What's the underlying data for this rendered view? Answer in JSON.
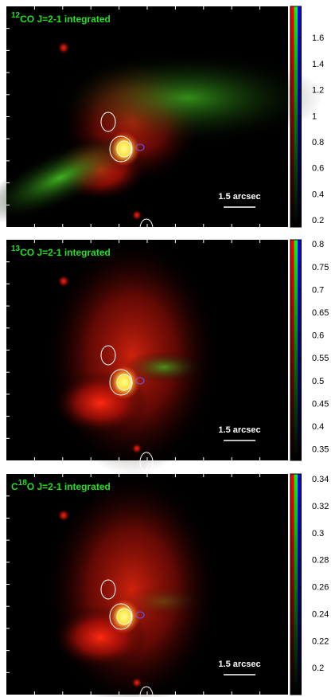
{
  "panels": [
    {
      "title": {
        "sup": "12",
        "main": "CO J=2-1 integrated"
      },
      "scale_label": "1.5 arcsec",
      "colorbar": {
        "lim": [
          0.145,
          1.84
        ],
        "ticks": [
          0.2,
          0.4,
          0.6,
          0.8,
          1,
          1.2,
          1.4,
          1.6
        ]
      }
    },
    {
      "title": {
        "sup": "13",
        "main": "CO J=2-1 integrated"
      },
      "scale_label": "1.5 arcsec",
      "colorbar": {
        "lim": [
          0.325,
          0.809
        ],
        "ticks": [
          0.35,
          0.4,
          0.45,
          0.5,
          0.55,
          0.6,
          0.65,
          0.7,
          0.75,
          0.8
        ]
      }
    },
    {
      "title": {
        "pre": "C",
        "sup": "18",
        "main": "O J=2-1 integrated"
      },
      "scale_label": "1.5 arcsec",
      "colorbar": {
        "lim": [
          0.18,
          0.3436
        ],
        "ticks": [
          0.2,
          0.22,
          0.24,
          0.26,
          0.28,
          0.3,
          0.32,
          0.34
        ]
      }
    }
  ]
}
